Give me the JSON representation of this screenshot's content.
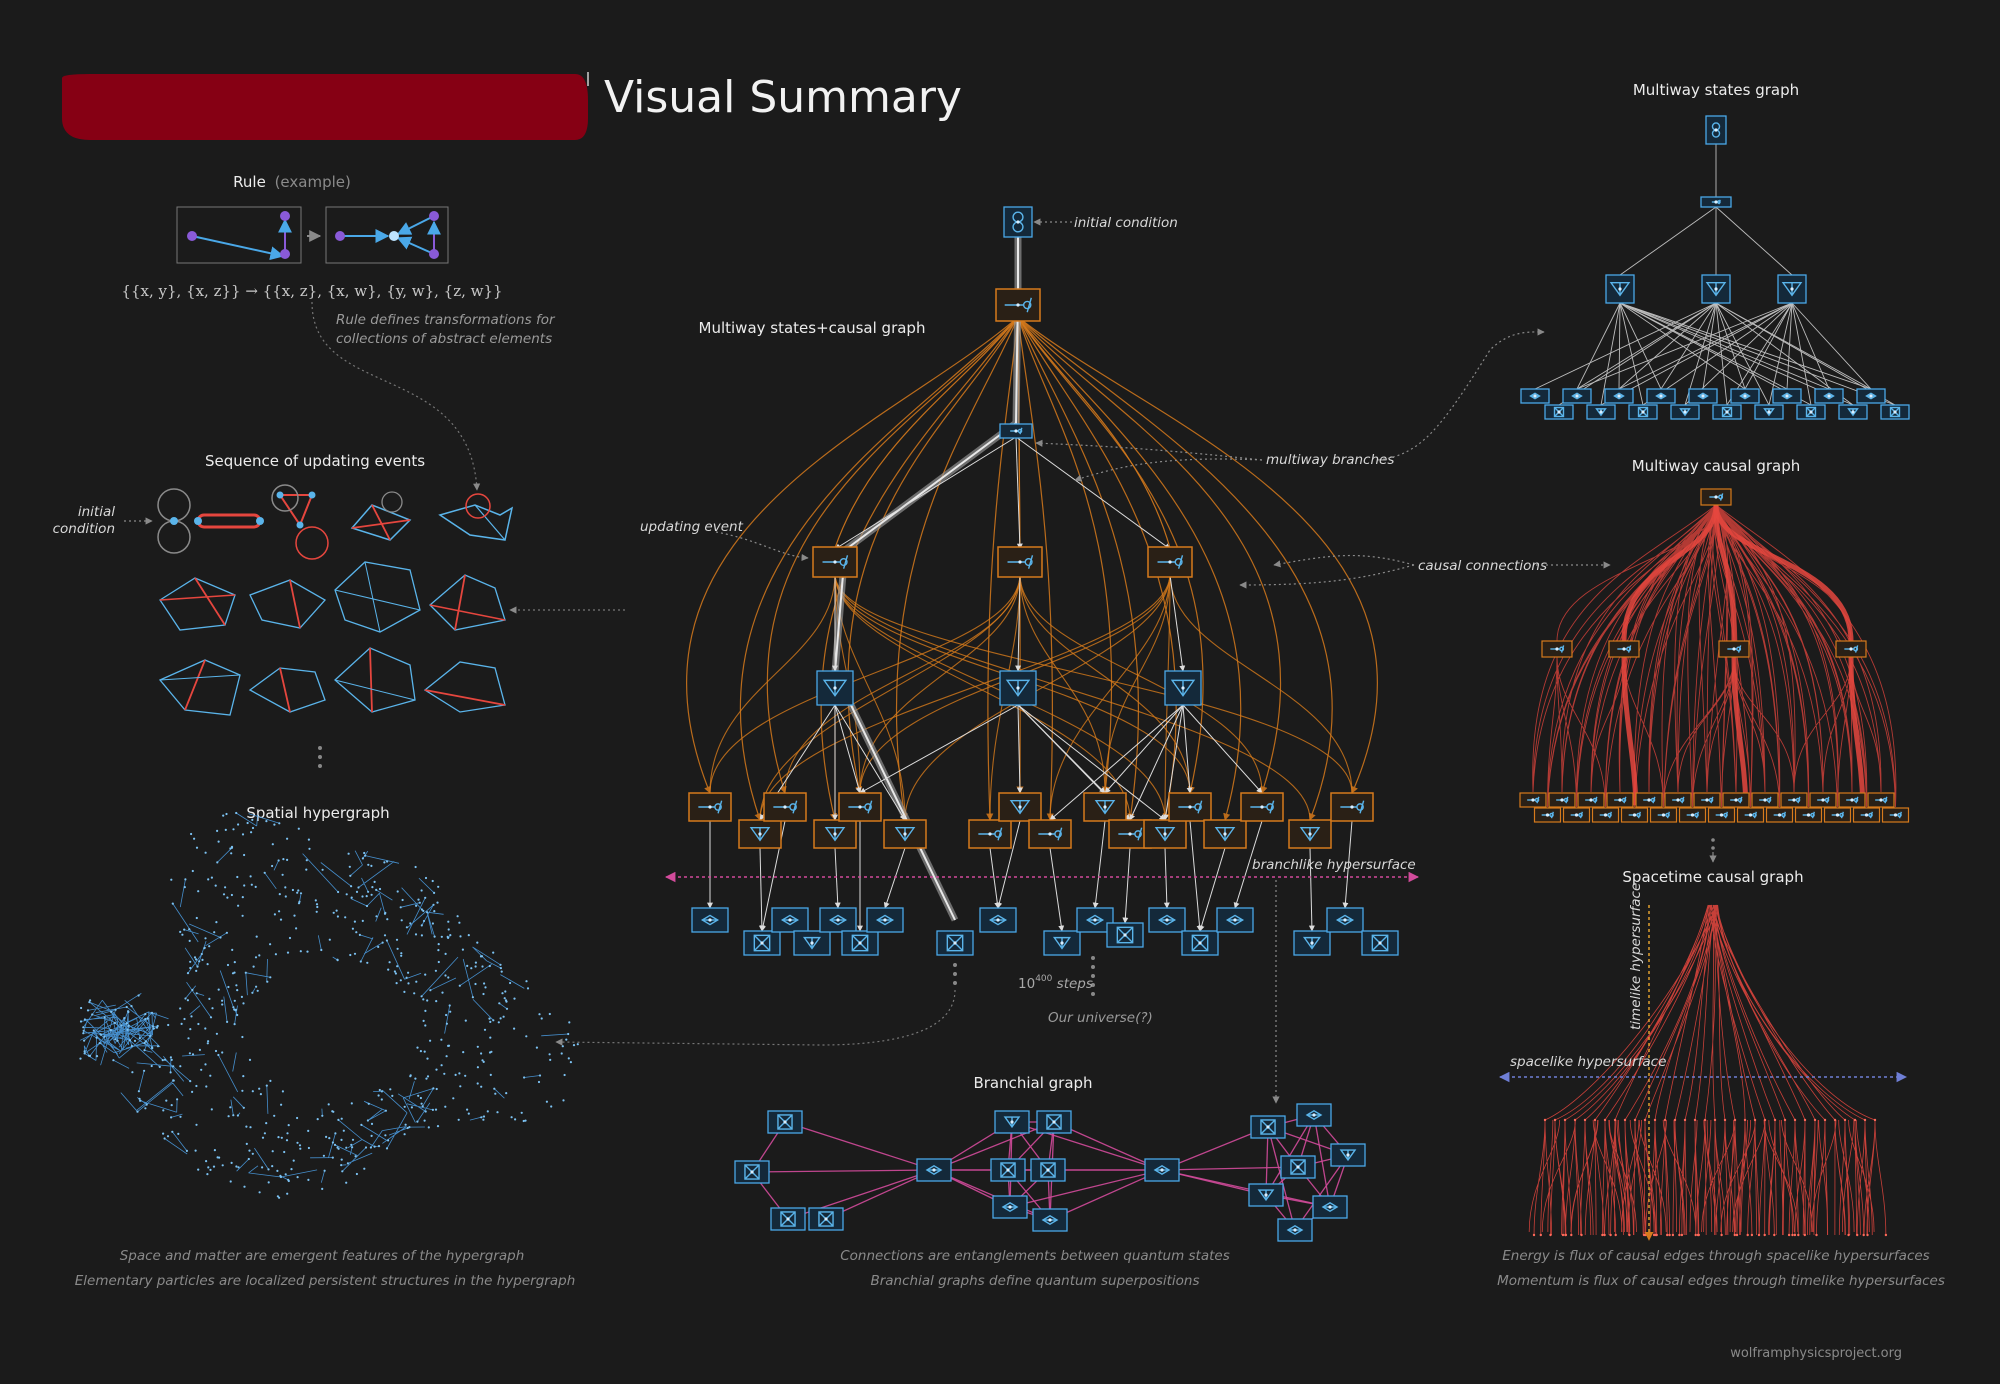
{
  "title": "Visual Summary",
  "rule": {
    "header": "Rule",
    "header_suffix": "(example)",
    "formula": "{{x, y}, {x, z}} → {{x, z}, {x, w}, {y, w}, {z, w}}",
    "note_line1": "Rule defines transformations for",
    "note_line2": "collections of abstract elements"
  },
  "sequence": {
    "header": "Sequence of updating events",
    "initial_line1": "initial",
    "initial_line2": "condition"
  },
  "spatial": {
    "header": "Spatial hypergraph",
    "foot1": "Space and matter are emergent features of the hypergraph",
    "foot2": "Elementary particles are localized persistent structures in the hypergraph"
  },
  "multiway": {
    "header": "Multiway states+causal graph",
    "initial_condition": "initial condition",
    "updating_event": "updating event",
    "multiway_branches": "multiway branches",
    "causal_connections": "causal connections",
    "branchlike_hypersurface": "branchlike hypersurface",
    "steps_base": "10",
    "steps_exp": "400",
    "steps_suffix": " steps",
    "our_universe": "Our universe(?)"
  },
  "branchial": {
    "header": "Branchial graph",
    "foot1": "Connections are entanglements between quantum states",
    "foot2": "Branchial graphs define quantum superpositions"
  },
  "states_graph": {
    "header": "Multiway states graph"
  },
  "causal_graph": {
    "header": "Multiway causal graph"
  },
  "spacetime": {
    "header": "Spacetime causal graph",
    "timelike": "timelike hypersurface",
    "spacelike": "spacelike hypersurface",
    "foot1": "Energy is flux of causal edges through spacelike hypersurfaces",
    "foot2": "Momentum is flux of causal edges through timelike hypersurfaces"
  },
  "credit": "wolframphysicsproject.org",
  "colors": {
    "background": "#1b1b1b",
    "banner": "#860014",
    "state_blue": "#5ab4ea",
    "event_orange": "#d67a1c",
    "causal_red": "#e5463e",
    "branchial_magenta": "#d24b9b",
    "hypergraph_blue": "#4a9be0",
    "rule_purple": "#8a5ad8"
  }
}
